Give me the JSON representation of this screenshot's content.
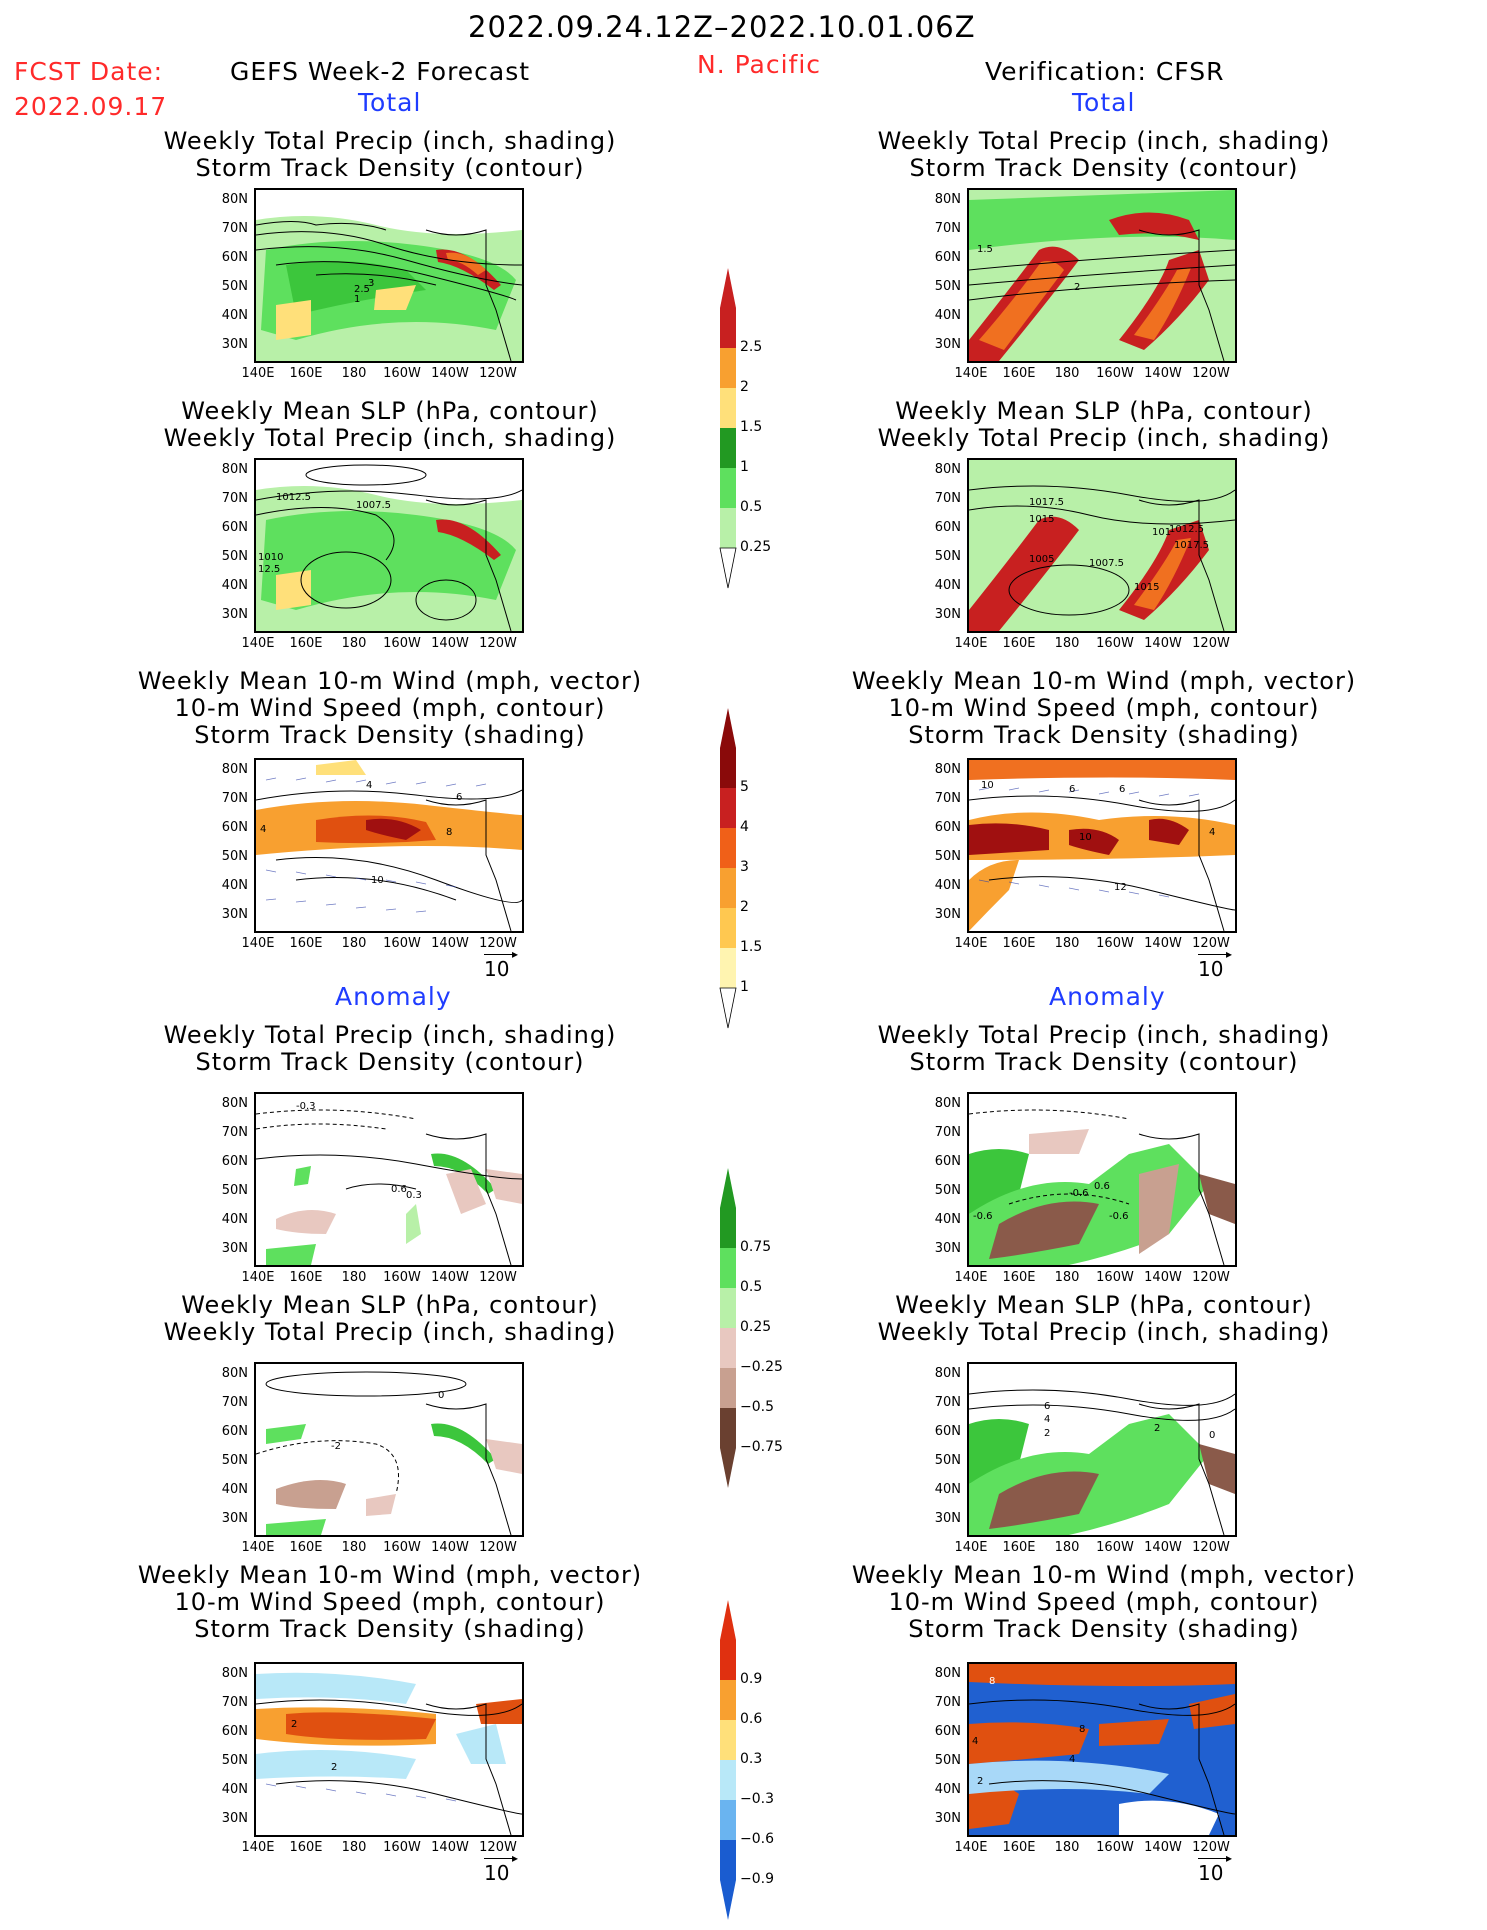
{
  "header": {
    "date_range": "2022.09.24.12Z–2022.10.01.06Z",
    "fcst_label": "FCST Date:",
    "fcst_date": "2022.09.17",
    "model": "GEFS Week-2 Forecast",
    "region": "N. Pacific",
    "verification": "Verification: CFSR"
  },
  "sections": {
    "total": "Total",
    "anomaly": "Anomaly"
  },
  "panel_titles": {
    "precip_std": [
      "Weekly Total Precip (inch, shading)",
      "Storm Track Density (contour)"
    ],
    "slp_precip": [
      "Weekly Mean SLP (hPa, contour)",
      "Weekly Total Precip (inch, shading)"
    ],
    "wind_std": [
      "Weekly Mean 10-m Wind (mph, vector)",
      "10-m Wind Speed (mph, contour)",
      "Storm Track Density (shading)"
    ]
  },
  "lat_ticks": [
    "80N",
    "70N",
    "60N",
    "50N",
    "40N",
    "30N"
  ],
  "lon_ticks": [
    "140E",
    "160E",
    "180",
    "160W",
    "140W",
    "120W"
  ],
  "vector_ref": "10",
  "colorbars": {
    "precip_total": [
      "2.5",
      "2",
      "1.5",
      "1",
      "0.5",
      "0.25"
    ],
    "std_total": [
      "5",
      "4",
      "3",
      "2",
      "1.5",
      "1"
    ],
    "precip_anom": [
      "0.75",
      "0.5",
      "0.25",
      "−0.25",
      "−0.5",
      "−0.75"
    ],
    "std_anom": [
      "0.9",
      "0.6",
      "0.3",
      "−0.3",
      "−0.6",
      "−0.9"
    ]
  },
  "contour_labels": {
    "p1": [
      "3",
      "2.5",
      "1"
    ],
    "p2": [
      "1012.5",
      "1007.5",
      "1010",
      "12.5"
    ],
    "p3": [
      "4",
      "6",
      "8",
      "10",
      "4"
    ],
    "p4": [
      "-0.3",
      "0.6",
      "0.3"
    ],
    "p5": [
      "0",
      "-2"
    ],
    "p6": [
      "2",
      "2"
    ],
    "v1": [
      "1.5",
      "2"
    ],
    "v2": [
      "1017.5",
      "1015",
      "1005",
      "1007.5",
      "1015",
      "1012.5",
      "1017.5",
      "101"
    ],
    "v3": [
      "10",
      "6",
      "6",
      "10",
      "12",
      "4"
    ],
    "v4": [
      "-0.6",
      "-0.6",
      "0.6",
      "-0.6"
    ],
    "v5": [
      "6",
      "4",
      "2",
      "2",
      "0"
    ],
    "v6": [
      "8",
      "4",
      "8",
      "4",
      "2"
    ]
  }
}
